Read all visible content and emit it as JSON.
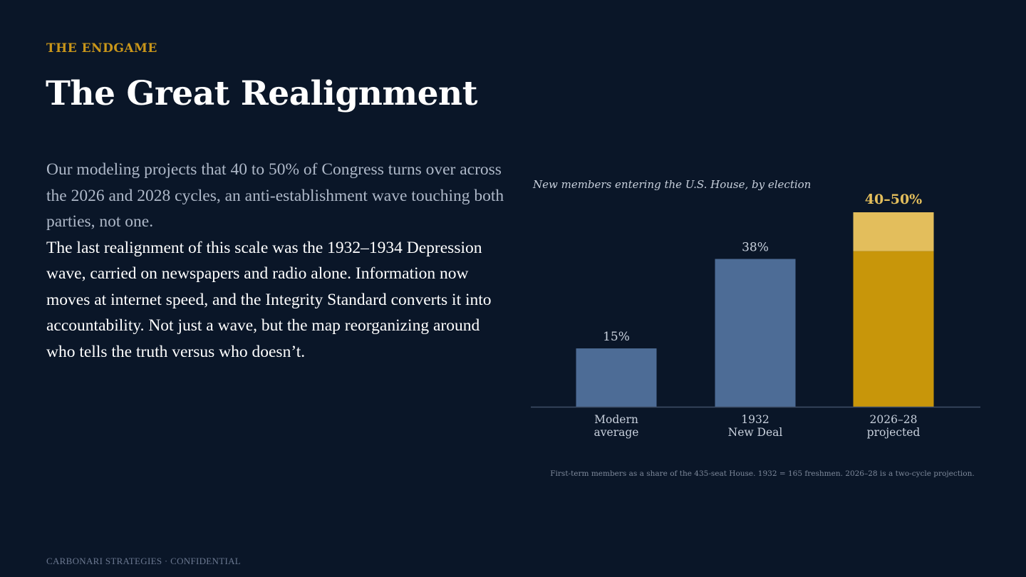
{
  "slide": {
    "eyebrow": "THE ENDGAME",
    "title": "The Great Realignment",
    "paragraph_1": "Our modeling projects that 40 to 50% of Congress turns over across the 2026 and 2028 cycles, an anti-establishment wave touching both parties, not one.",
    "paragraph_2": "The last realignment of this scale was the 1932–1934 Depression wave, carried on newspapers and radio alone. Information now moves at internet speed, and the Integrity Standard converts it into accountability. Not just a wave, but the map reorganizing around who tells the truth versus who doesn’t.",
    "footer": "CARBONARI STRATEGIES  ·  CONFIDENTIAL"
  },
  "chart_data": {
    "type": "bar",
    "subtitle": "New members entering the U.S. House, by election",
    "categories": [
      [
        "Modern",
        "average"
      ],
      [
        "1932",
        "New Deal"
      ],
      [
        "2026–28",
        "projected"
      ]
    ],
    "values": [
      15,
      38,
      40
    ],
    "range_upper": [
      null,
      null,
      50
    ],
    "labels": [
      "15%",
      "38%",
      "40–50%"
    ],
    "ylim": [
      0,
      50
    ],
    "grid": false,
    "footnote": "First-term members as a share of the 435-seat House.  1932 = 165 freshmen.  2026–28 is a two-cycle projection.",
    "colors": {
      "historic": "#4d6c96",
      "projected_base": "#c8960a",
      "projected_range": "#e3be5c",
      "label": "#c8d0dc",
      "highlight_label": "#e3be5c",
      "axis": "#3f4e66"
    }
  }
}
